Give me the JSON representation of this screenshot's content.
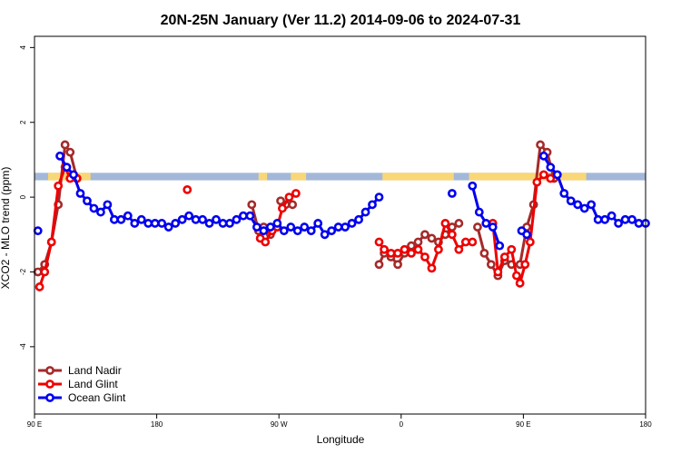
{
  "chart_data": {
    "type": "line",
    "title": "20N-25N January (Ver 11.2)   2014-09-06 to 2024-07-31",
    "xlabel": "Longitude",
    "ylabel": "XCO2 - MLO trend (ppm)",
    "xlim": [
      0,
      360
    ],
    "ylim": [
      -5.8,
      4.3
    ],
    "xtick_values": [
      0,
      72,
      144,
      216,
      288,
      360
    ],
    "xtick_labels": [
      "90 E",
      "180",
      "90 W",
      "0",
      "90 E",
      "180"
    ],
    "ytick_values": [
      -4,
      -2,
      0,
      2,
      4
    ],
    "ytick_labels": [
      "-4",
      "-2",
      "0",
      "2",
      "4"
    ],
    "land_band": {
      "y_range": [
        0.45,
        0.65
      ],
      "ocean_color": "#a3b8d8",
      "land_color": "#f9d777",
      "land_x_ranges": [
        [
          8,
          33
        ],
        [
          132,
          137
        ],
        [
          151,
          160
        ],
        [
          205,
          247
        ],
        [
          256,
          302
        ],
        [
          308,
          325
        ]
      ]
    },
    "legend": {
      "position": "bottom-left"
    },
    "series": [
      {
        "name": "Land Nadir",
        "color": "#a52a2a",
        "segments": [
          [
            [
              2,
              -2.0
            ],
            [
              6,
              -1.8
            ],
            [
              10,
              -1.2
            ],
            [
              14,
              -0.2
            ],
            [
              18,
              1.4
            ],
            [
              21,
              1.2
            ],
            [
              25,
              0.5
            ]
          ],
          [
            [
              128,
              -0.2
            ],
            [
              132,
              -0.9
            ],
            [
              135,
              -0.8
            ],
            [
              139,
              -1.0
            ]
          ],
          [
            [
              145,
              -0.1
            ],
            [
              148,
              -0.2
            ],
            [
              152,
              -0.2
            ]
          ],
          [
            [
              203,
              -1.8
            ],
            [
              206,
              -1.5
            ],
            [
              210,
              -1.6
            ],
            [
              214,
              -1.8
            ],
            [
              218,
              -1.5
            ],
            [
              222,
              -1.3
            ],
            [
              226,
              -1.2
            ],
            [
              230,
              -1.0
            ],
            [
              234,
              -1.1
            ],
            [
              238,
              -1.2
            ],
            [
              242,
              -1.0
            ],
            [
              246,
              -0.8
            ],
            [
              250,
              -0.7
            ]
          ],
          [
            [
              261,
              -0.8
            ],
            [
              265,
              -1.5
            ],
            [
              269,
              -1.8
            ],
            [
              273,
              -2.1
            ],
            [
              277,
              -1.7
            ],
            [
              281,
              -1.8
            ],
            [
              286,
              -1.8
            ],
            [
              290,
              -0.8
            ],
            [
              294,
              -0.2
            ],
            [
              298,
              1.4
            ],
            [
              302,
              1.2
            ],
            [
              306,
              0.5
            ]
          ]
        ]
      },
      {
        "name": "Land Glint",
        "color": "#ee0000",
        "segments": [
          [
            [
              3,
              -2.4
            ],
            [
              6,
              -2.0
            ],
            [
              10,
              -1.2
            ],
            [
              14,
              0.3
            ],
            [
              18,
              0.8
            ],
            [
              21,
              0.5
            ],
            [
              25,
              0.5
            ]
          ],
          [
            [
              90,
              0.2
            ]
          ],
          [
            [
              133,
              -1.1
            ],
            [
              136,
              -1.2
            ],
            [
              140,
              -0.9
            ],
            [
              143,
              -0.8
            ],
            [
              146,
              -0.3
            ],
            [
              150,
              0.0
            ],
            [
              154,
              0.1
            ]
          ],
          [
            [
              203,
              -1.2
            ],
            [
              206,
              -1.4
            ],
            [
              210,
              -1.5
            ],
            [
              214,
              -1.5
            ],
            [
              218,
              -1.4
            ],
            [
              222,
              -1.5
            ],
            [
              226,
              -1.4
            ],
            [
              230,
              -1.6
            ],
            [
              234,
              -1.9
            ],
            [
              238,
              -1.4
            ],
            [
              242,
              -0.7
            ],
            [
              246,
              -1.0
            ],
            [
              250,
              -1.4
            ],
            [
              254,
              -1.2
            ],
            [
              258,
              -1.2
            ]
          ],
          [
            [
              270,
              -0.7
            ],
            [
              273,
              -2.0
            ],
            [
              277,
              -1.6
            ],
            [
              281,
              -1.4
            ],
            [
              284,
              -2.1
            ],
            [
              286,
              -2.3
            ],
            [
              289,
              -1.8
            ],
            [
              292,
              -1.2
            ],
            [
              296,
              0.4
            ],
            [
              300,
              0.6
            ],
            [
              304,
              0.5
            ]
          ]
        ]
      },
      {
        "name": "Ocean Glint",
        "color": "#0000ee",
        "segments": [
          [
            [
              2,
              -0.9
            ]
          ],
          [
            [
              15,
              1.1
            ],
            [
              19,
              0.8
            ],
            [
              23,
              0.6
            ],
            [
              27,
              0.1
            ],
            [
              31,
              -0.1
            ],
            [
              35,
              -0.3
            ],
            [
              39,
              -0.4
            ],
            [
              43,
              -0.2
            ],
            [
              47,
              -0.6
            ],
            [
              51,
              -0.6
            ],
            [
              55,
              -0.5
            ],
            [
              59,
              -0.7
            ],
            [
              63,
              -0.6
            ],
            [
              67,
              -0.7
            ],
            [
              71,
              -0.7
            ],
            [
              75,
              -0.7
            ],
            [
              79,
              -0.8
            ],
            [
              83,
              -0.7
            ],
            [
              87,
              -0.6
            ],
            [
              91,
              -0.5
            ],
            [
              95,
              -0.6
            ],
            [
              99,
              -0.6
            ],
            [
              103,
              -0.7
            ],
            [
              107,
              -0.6
            ],
            [
              111,
              -0.7
            ],
            [
              115,
              -0.7
            ],
            [
              119,
              -0.6
            ],
            [
              123,
              -0.5
            ],
            [
              127,
              -0.5
            ],
            [
              131,
              -0.8
            ],
            [
              135,
              -0.9
            ],
            [
              139,
              -0.8
            ],
            [
              143,
              -0.7
            ],
            [
              147,
              -0.9
            ],
            [
              151,
              -0.8
            ],
            [
              155,
              -0.9
            ],
            [
              159,
              -0.8
            ],
            [
              163,
              -0.9
            ],
            [
              167,
              -0.7
            ],
            [
              171,
              -1.0
            ],
            [
              175,
              -0.9
            ],
            [
              179,
              -0.8
            ],
            [
              183,
              -0.8
            ],
            [
              187,
              -0.7
            ],
            [
              191,
              -0.6
            ],
            [
              195,
              -0.4
            ],
            [
              199,
              -0.2
            ],
            [
              203,
              0.0
            ]
          ],
          [
            [
              246,
              0.1
            ]
          ],
          [
            [
              258,
              0.3
            ],
            [
              262,
              -0.4
            ],
            [
              266,
              -0.7
            ],
            [
              270,
              -0.8
            ],
            [
              274,
              -1.3
            ]
          ],
          [
            [
              287,
              -0.9
            ],
            [
              290,
              -1.0
            ]
          ],
          [
            [
              300,
              1.1
            ],
            [
              304,
              0.8
            ],
            [
              308,
              0.6
            ],
            [
              312,
              0.1
            ],
            [
              316,
              -0.1
            ],
            [
              320,
              -0.2
            ],
            [
              324,
              -0.3
            ],
            [
              328,
              -0.2
            ],
            [
              332,
              -0.6
            ],
            [
              336,
              -0.6
            ],
            [
              340,
              -0.5
            ],
            [
              344,
              -0.7
            ],
            [
              348,
              -0.6
            ],
            [
              352,
              -0.6
            ],
            [
              356,
              -0.7
            ],
            [
              360,
              -0.7
            ]
          ]
        ]
      }
    ]
  }
}
